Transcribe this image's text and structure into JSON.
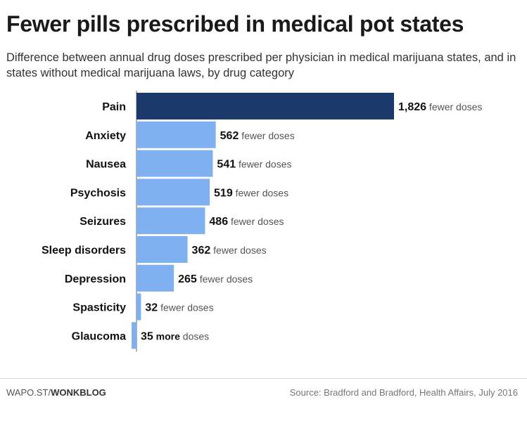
{
  "chart_data": {
    "type": "bar",
    "orientation": "horizontal",
    "title": "Fewer pills prescribed in medical pot states",
    "subtitle": "Difference between annual drug doses prescribed per physician in medical marijuana states, and in states without medical marijuana laws, by drug category",
    "categories": [
      "Pain",
      "Anxiety",
      "Nausea",
      "Psychosis",
      "Seizures",
      "Sleep disorders",
      "Depression",
      "Spasticity",
      "Glaucoma"
    ],
    "values": [
      1826,
      562,
      541,
      519,
      486,
      362,
      265,
      32,
      -35
    ],
    "value_labels": [
      "1,826",
      "562",
      "541",
      "519",
      "486",
      "362",
      "265",
      "32",
      "35"
    ],
    "label_suffix_pre": [
      "",
      "",
      "",
      "",
      "",
      "",
      "",
      "",
      "more"
    ],
    "label_suffix": [
      "fewer doses",
      "fewer doses",
      "fewer doses",
      "fewer doses",
      "fewer doses",
      "fewer doses",
      "fewer doses",
      "fewer doses",
      "doses"
    ],
    "highlight_index": 0,
    "xlim": [
      -35,
      1826
    ],
    "grid": false,
    "colors": {
      "highlight": "#1b3a6b",
      "bar": "#7fb0ef",
      "axis": "#666666"
    }
  },
  "footer": {
    "brand_prefix": "WAPO.ST/",
    "brand_bold": "WONKBLOG",
    "source": "Source: Bradford and Bradford, Health Affairs, July 2016"
  }
}
